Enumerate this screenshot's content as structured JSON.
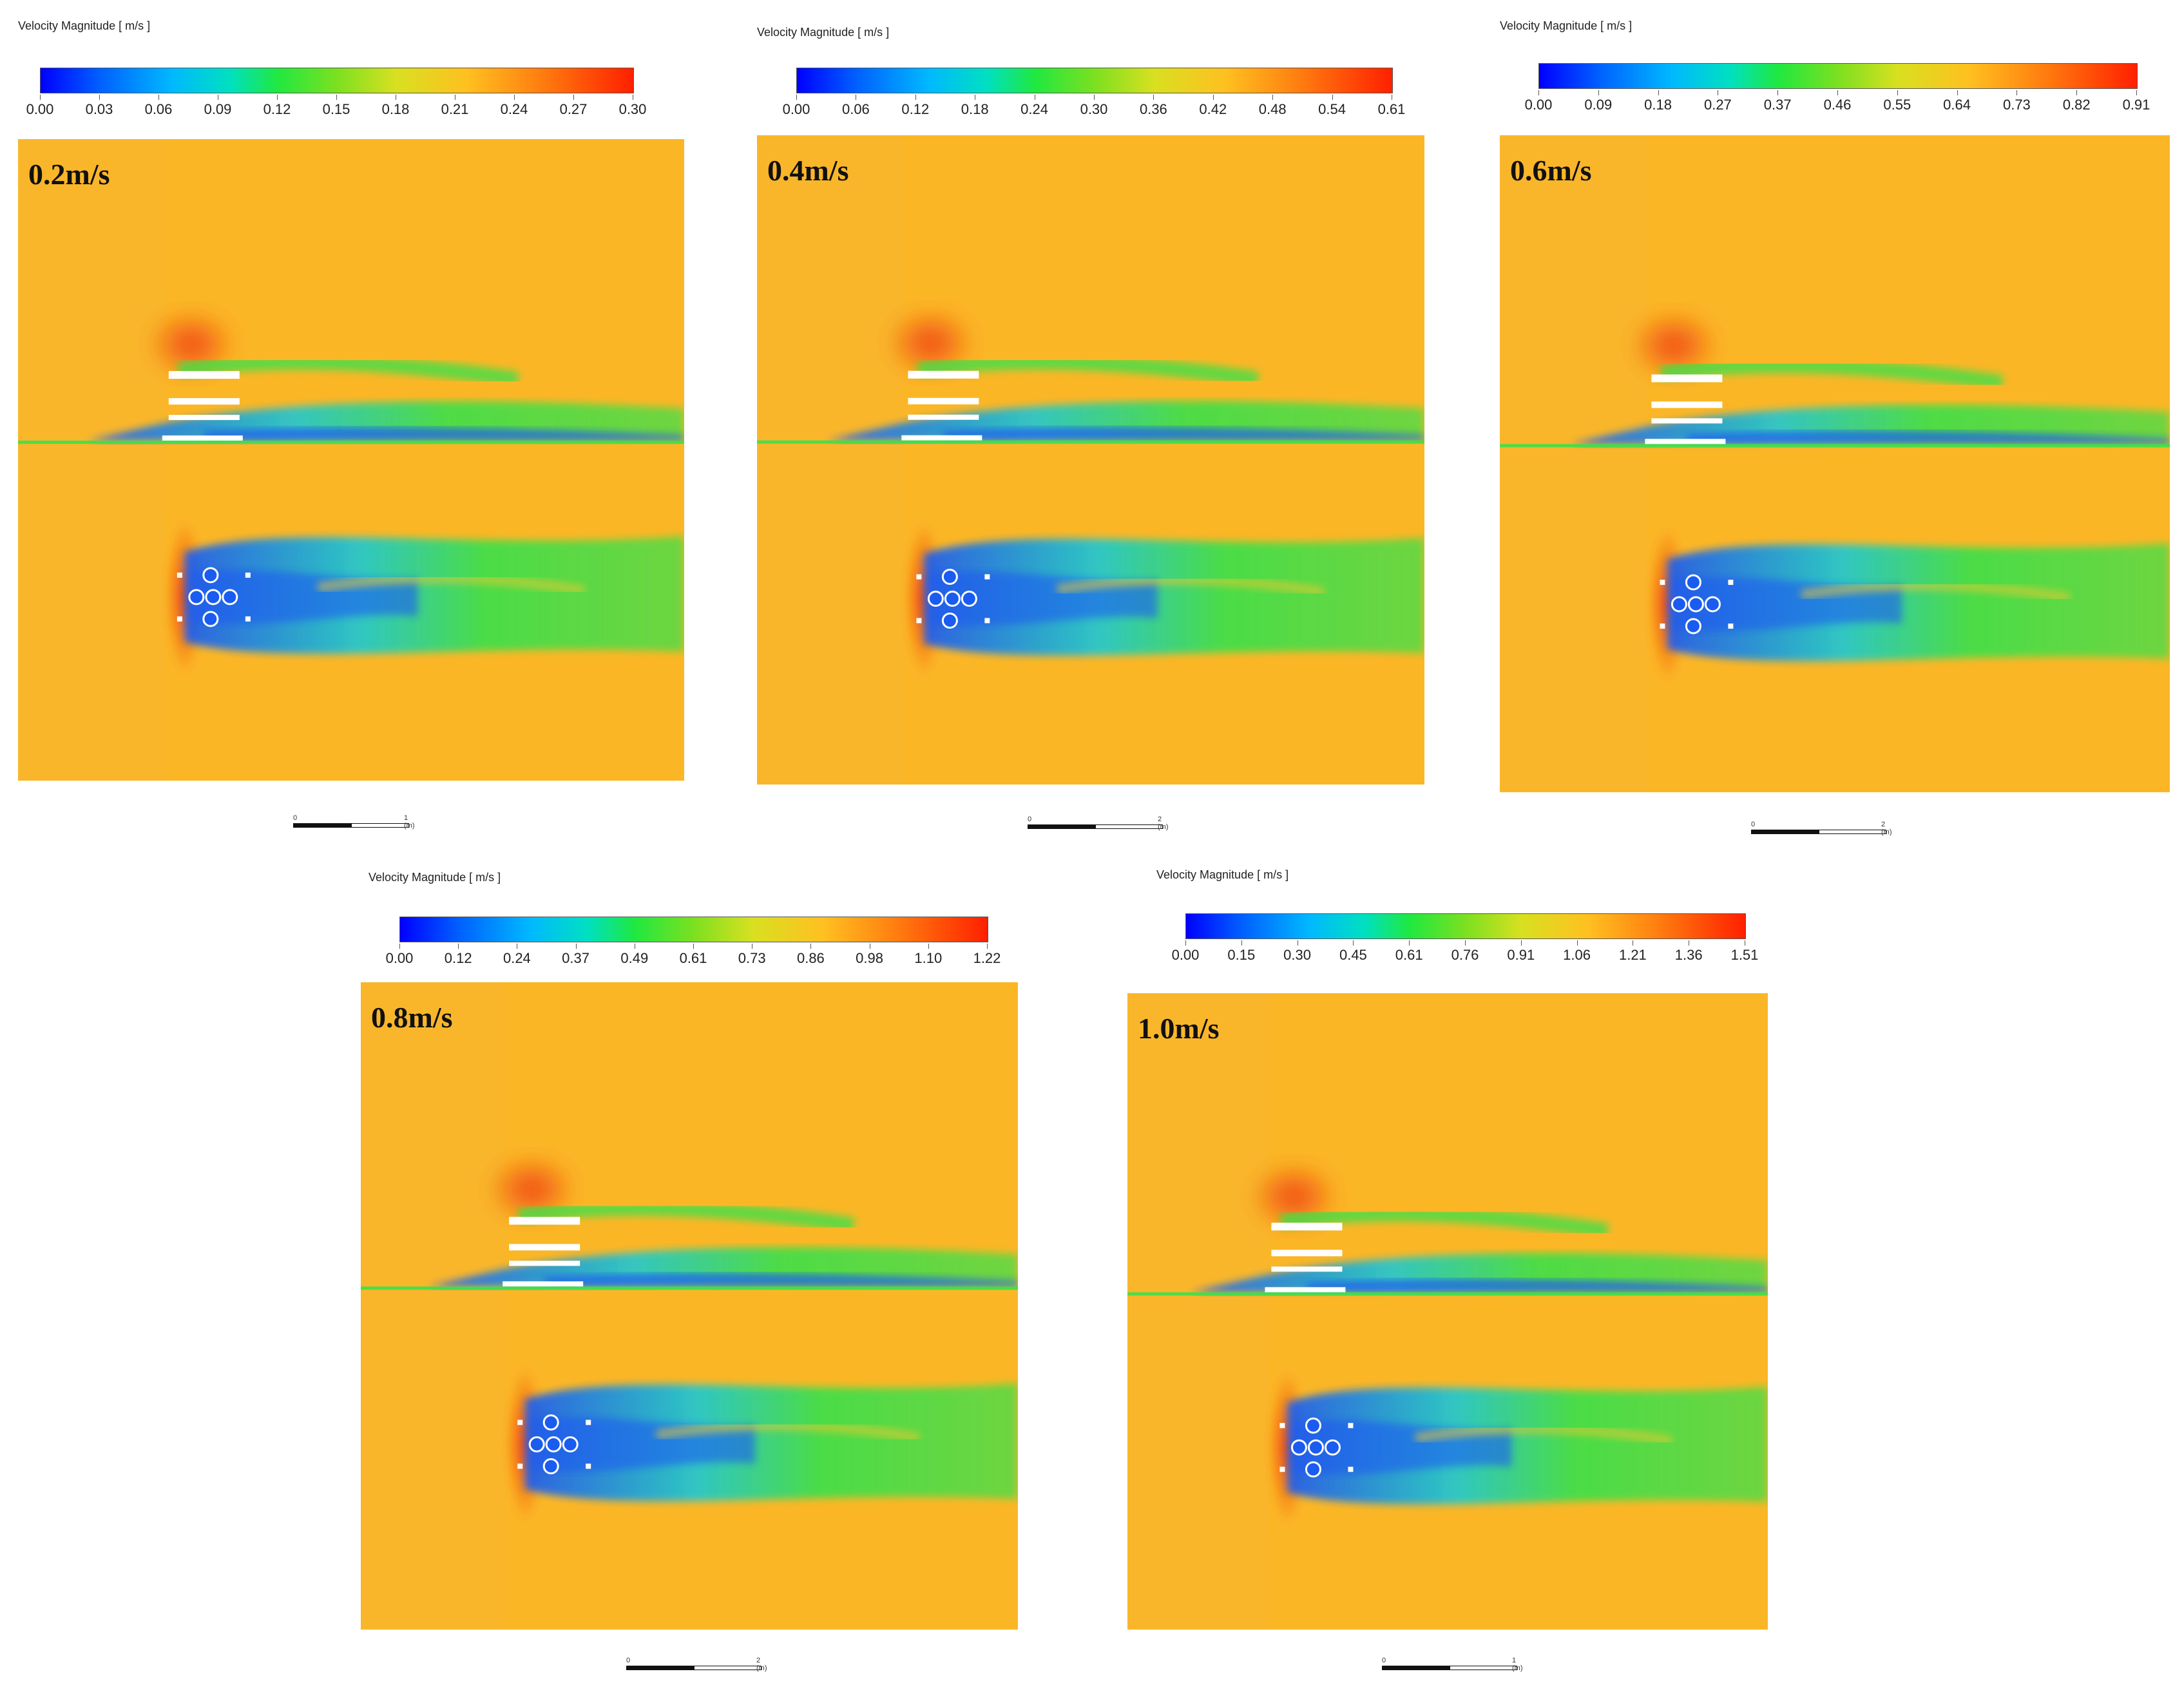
{
  "panels": [
    {
      "colorbar_title": "Velocity Magnitude [ m/s ]",
      "ticks": [
        "0.00",
        "0.03",
        "0.06",
        "0.09",
        "0.12",
        "0.15",
        "0.18",
        "0.21",
        "0.24",
        "0.27",
        "0.30"
      ],
      "label": "0.2m/s",
      "scale_left": "0",
      "scale_right": "1 (m)"
    },
    {
      "colorbar_title": "Velocity Magnitude [ m/s ]",
      "ticks": [
        "0.00",
        "0.06",
        "0.12",
        "0.18",
        "0.24",
        "0.30",
        "0.36",
        "0.42",
        "0.48",
        "0.54",
        "0.61"
      ],
      "label": "0.4m/s",
      "scale_left": "0",
      "scale_right": "2 (m)"
    },
    {
      "colorbar_title": "Velocity Magnitude [ m/s ]",
      "ticks": [
        "0.00",
        "0.09",
        "0.18",
        "0.27",
        "0.37",
        "0.46",
        "0.55",
        "0.64",
        "0.73",
        "0.82",
        "0.91"
      ],
      "label": "0.6m/s",
      "scale_left": "0",
      "scale_right": "2 (m)"
    },
    {
      "colorbar_title": "Velocity Magnitude [ m/s ]",
      "ticks": [
        "0.00",
        "0.12",
        "0.24",
        "0.37",
        "0.49",
        "0.61",
        "0.73",
        "0.86",
        "0.98",
        "1.10",
        "1.22"
      ],
      "label": "0.8m/s",
      "scale_left": "0",
      "scale_right": "2 (m)"
    },
    {
      "colorbar_title": "Velocity Magnitude [ m/s ]",
      "ticks": [
        "0.00",
        "0.15",
        "0.30",
        "0.45",
        "0.61",
        "0.76",
        "0.91",
        "1.06",
        "1.21",
        "1.36",
        "1.51"
      ],
      "label": "1.0m/s",
      "scale_left": "0",
      "scale_right": "1 (m)"
    }
  ],
  "colors": {
    "background_flow": "#fbb626",
    "wake_green": "#3ce04a",
    "wake_blue": "#1a5cf0",
    "stagnation_red": "#f04010"
  }
}
